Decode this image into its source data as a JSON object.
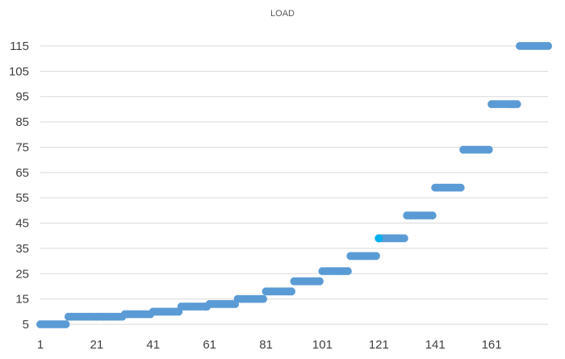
{
  "chart_data": {
    "type": "scatter",
    "title": "LOAD",
    "xlabel": "",
    "ylabel": "",
    "xlim": [
      1,
      181
    ],
    "ylim": [
      5,
      115
    ],
    "x_ticks": [
      1,
      21,
      41,
      61,
      81,
      101,
      121,
      141,
      161
    ],
    "y_ticks": [
      5,
      15,
      25,
      35,
      45,
      55,
      65,
      75,
      85,
      95,
      105,
      115
    ],
    "grid": true,
    "legend": "none",
    "colors": {
      "series": "#5b9bd5",
      "highlight": "#00b0f0"
    },
    "segments": [
      {
        "x_start": 1,
        "x_end": 10,
        "y": 5
      },
      {
        "x_start": 11,
        "x_end": 30,
        "y": 8
      },
      {
        "x_start": 31,
        "x_end": 40,
        "y": 9
      },
      {
        "x_start": 41,
        "x_end": 50,
        "y": 10
      },
      {
        "x_start": 51,
        "x_end": 60,
        "y": 12
      },
      {
        "x_start": 61,
        "x_end": 70,
        "y": 13
      },
      {
        "x_start": 71,
        "x_end": 80,
        "y": 15
      },
      {
        "x_start": 81,
        "x_end": 90,
        "y": 18
      },
      {
        "x_start": 91,
        "x_end": 100,
        "y": 22
      },
      {
        "x_start": 101,
        "x_end": 110,
        "y": 26
      },
      {
        "x_start": 111,
        "x_end": 120,
        "y": 32
      },
      {
        "x_start": 121,
        "x_end": 130,
        "y": 39
      },
      {
        "x_start": 131,
        "x_end": 140,
        "y": 48
      },
      {
        "x_start": 141,
        "x_end": 150,
        "y": 59
      },
      {
        "x_start": 151,
        "x_end": 160,
        "y": 74
      },
      {
        "x_start": 161,
        "x_end": 170,
        "y": 92
      },
      {
        "x_start": 171,
        "x_end": 181,
        "y": 115
      }
    ],
    "highlight_point": {
      "x": 121,
      "y": 39
    }
  }
}
